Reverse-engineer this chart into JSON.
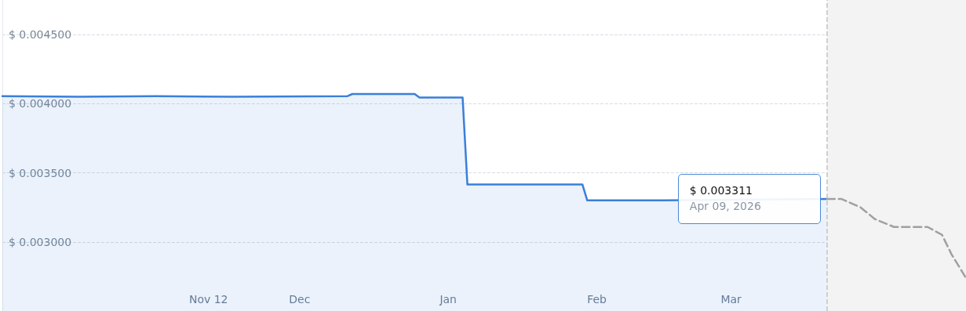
{
  "chart_data": {
    "type": "area",
    "series": [
      {
        "type": "area",
        "color": "#3a7fd8",
        "x": [
          "2025-09-30",
          "2025-10-16",
          "2025-11-01",
          "2025-11-17",
          "2025-12-11",
          "2025-12-12",
          "2025-12-25",
          "2025-12-26",
          "2026-01-04",
          "2026-01-05",
          "2026-01-24",
          "2026-01-29",
          "2026-01-30",
          "2026-02-15",
          "2026-03-21"
        ],
        "values": [
          0.004055,
          0.00405,
          0.004055,
          0.00405,
          0.004055,
          0.00407,
          0.00407,
          0.004045,
          0.004045,
          0.003415,
          0.003415,
          0.003415,
          0.0033,
          0.0033,
          0.003311
        ]
      },
      {
        "type": "line",
        "color": "#a0a0a0",
        "line_style": "dashed",
        "x": [
          "2026-03-21",
          "2026-03-24",
          "2026-03-28",
          "2026-03-31",
          "2026-04-04",
          "2026-04-11",
          "2026-04-14",
          "2026-04-16",
          "2026-04-19"
        ],
        "values": [
          0.003311,
          0.003311,
          0.00325,
          0.003165,
          0.003108,
          0.003108,
          0.003051,
          0.002909,
          0.002739
        ]
      }
    ],
    "xlim": [
      "2025-09-30",
      "2026-04-19"
    ],
    "xticks": [
      {
        "value": "2025-11-12",
        "label": "Nov 12"
      },
      {
        "value": "2025-12-01",
        "label": "Dec"
      },
      {
        "value": "2026-01-01",
        "label": "Jan"
      },
      {
        "value": "2026-02-01",
        "label": "Feb"
      },
      {
        "value": "2026-03-01",
        "label": "Mar"
      }
    ],
    "ylim": [
      0.0025,
      0.00475
    ],
    "yticks": [
      {
        "value": 0.003,
        "label": "$ 0.003000"
      },
      {
        "value": 0.0035,
        "label": "$ 0.003500"
      },
      {
        "value": 0.004,
        "label": "$ 0.004000"
      },
      {
        "value": 0.0045,
        "label": "$ 0.004500"
      }
    ],
    "grid": "y",
    "bands": [
      {
        "axis": "x",
        "from": "2026-03-21",
        "to": "2026-04-19",
        "color": "#f3f3f3"
      }
    ],
    "ref_lines": [
      {
        "axis": "x",
        "value": "2026-03-21",
        "color": "#c4c4c4",
        "line_style": "dashed"
      }
    ],
    "annotations": [
      "$ 0.003311",
      "Apr 09, 2026"
    ]
  }
}
